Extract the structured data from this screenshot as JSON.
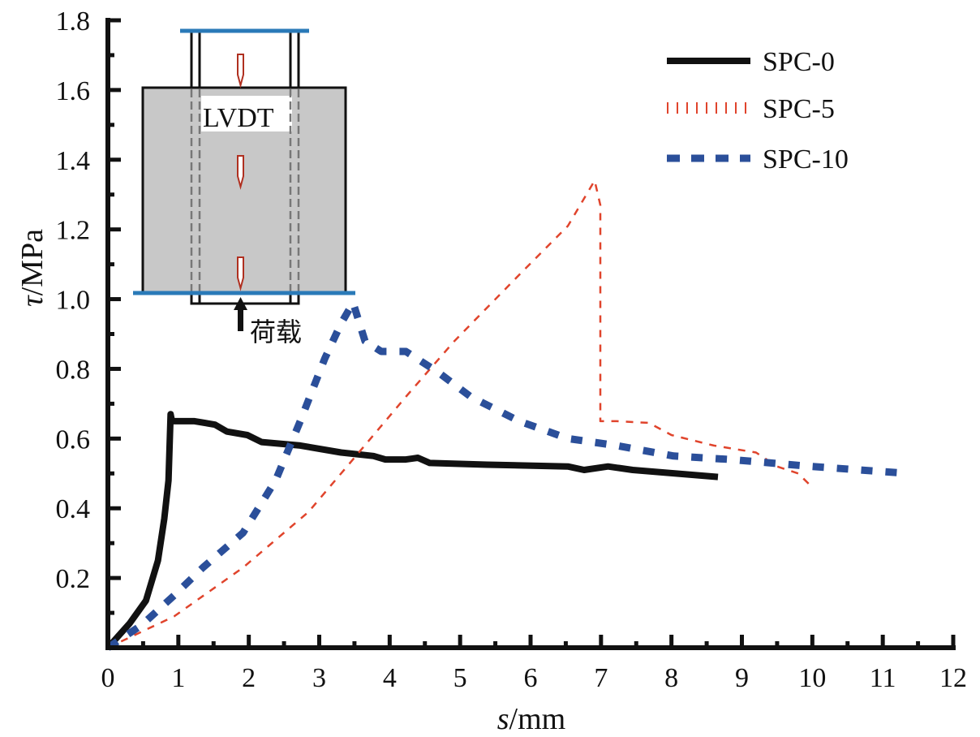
{
  "chart_data": {
    "type": "line",
    "title": "",
    "xlabel_italic": "s",
    "xlabel_unit": "/mm",
    "ylabel_italic": "τ",
    "ylabel_unit": "/MPa",
    "xlim": [
      0,
      12
    ],
    "ylim": [
      0,
      1.8
    ],
    "xticks": [
      "0",
      "1",
      "2",
      "3",
      "4",
      "5",
      "6",
      "7",
      "8",
      "9",
      "10",
      "11",
      "12"
    ],
    "yticks": [
      "0.2",
      "0.4",
      "0.6",
      "0.8",
      "1.0",
      "1.2",
      "1.4",
      "1.6",
      "1.8"
    ],
    "grid": false,
    "legend_position": "top-right",
    "series": [
      {
        "name": "SPC-0",
        "color": "#111111",
        "style": "solid",
        "x": [
          0,
          0.31,
          0.54,
          0.71,
          0.8,
          0.86,
          0.89,
          0.91,
          1.0,
          1.23,
          1.52,
          1.69,
          1.98,
          2.18,
          2.73,
          3.31,
          3.77,
          3.94,
          4.23,
          4.4,
          4.57,
          5.38,
          6.53,
          6.76,
          7.1,
          7.45,
          8.66
        ],
        "y": [
          0,
          0.07,
          0.135,
          0.25,
          0.37,
          0.48,
          0.67,
          0.65,
          0.65,
          0.65,
          0.64,
          0.62,
          0.61,
          0.59,
          0.58,
          0.56,
          0.55,
          0.54,
          0.54,
          0.545,
          0.53,
          0.525,
          0.52,
          0.51,
          0.52,
          0.51,
          0.49
        ]
      },
      {
        "name": "SPC-5",
        "color": "#e0442c",
        "style": "dotted",
        "x": [
          0,
          0.94,
          1.92,
          2.85,
          3.54,
          4.23,
          4.92,
          5.84,
          6.53,
          6.91,
          6.99,
          6.99,
          7.22,
          7.68,
          8.0,
          8.6,
          9.2,
          9.5,
          9.8,
          10.0
        ],
        "y": [
          0,
          0.09,
          0.23,
          0.39,
          0.555,
          0.72,
          0.88,
          1.07,
          1.21,
          1.34,
          1.27,
          0.65,
          0.65,
          0.645,
          0.61,
          0.58,
          0.56,
          0.52,
          0.5,
          0.46
        ]
      },
      {
        "name": "SPC-10",
        "color": "#2b4f9a",
        "style": "dashed",
        "x": [
          0,
          0.48,
          0.94,
          1.35,
          1.92,
          2.38,
          2.73,
          3.08,
          3.31,
          3.48,
          3.65,
          3.88,
          4.23,
          4.69,
          5.15,
          5.84,
          6.53,
          7.22,
          8.03,
          8.84,
          9.99,
          11.37
        ],
        "y": [
          0,
          0.065,
          0.15,
          0.23,
          0.33,
          0.48,
          0.65,
          0.83,
          0.93,
          0.99,
          0.88,
          0.85,
          0.85,
          0.79,
          0.72,
          0.65,
          0.6,
          0.58,
          0.55,
          0.54,
          0.52,
          0.5
        ]
      }
    ],
    "inset": {
      "sensor_label": "LVDT",
      "load_label": "荷载"
    }
  }
}
